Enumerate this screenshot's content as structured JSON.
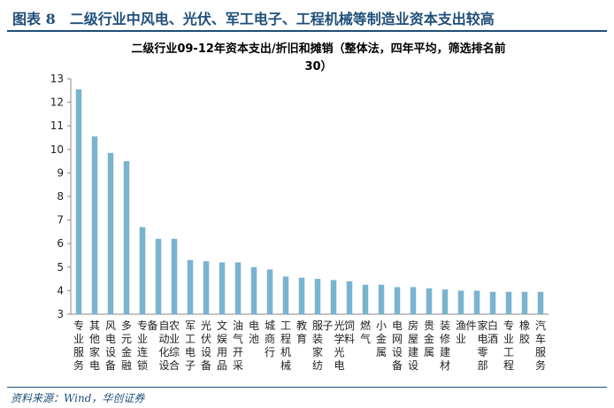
{
  "figure": {
    "label": "图表 8　二级行业中风电、光伏、军工电子、工程机械等制造业资本支出较高"
  },
  "source": "资料来源：Wind，华创证券",
  "chart_data": {
    "type": "bar",
    "title_line1": "二级行业09-12年资本支出/折旧和摊销（整体法，四年平均，筛选排名前",
    "title_line2": "30）",
    "xlabel": "",
    "ylabel": "",
    "ylim": [
      3,
      13
    ],
    "yticks": [
      3,
      4,
      5,
      6,
      7,
      8,
      9,
      10,
      11,
      12,
      13
    ],
    "bar_color": "#79b4cf",
    "grid": false,
    "categories": [
      "专业服务",
      "其他家电",
      "风电设备",
      "多元金融",
      "专业连锁",
      "自动化设备",
      "农业综合",
      "军工电子",
      "光伏设备",
      "文娱用品",
      "油气开采",
      "电池",
      "城商行",
      "工程机械",
      "教育",
      "服装家纺",
      "光学光电子",
      "饲料",
      "燃气",
      "小金属",
      "电网设备",
      "房屋建设",
      "贵金属",
      "装修建材",
      "渔业",
      "家电零部件",
      "白酒",
      "专业工程",
      "橡胶",
      "汽车服务"
    ],
    "values": [
      12.55,
      10.55,
      9.85,
      9.5,
      6.7,
      6.2,
      6.2,
      5.3,
      5.25,
      5.2,
      5.2,
      5.0,
      4.9,
      4.6,
      4.55,
      4.5,
      4.45,
      4.4,
      4.25,
      4.25,
      4.15,
      4.15,
      4.1,
      4.05,
      4.0,
      4.0,
      3.95,
      3.95,
      3.95,
      3.95
    ]
  }
}
